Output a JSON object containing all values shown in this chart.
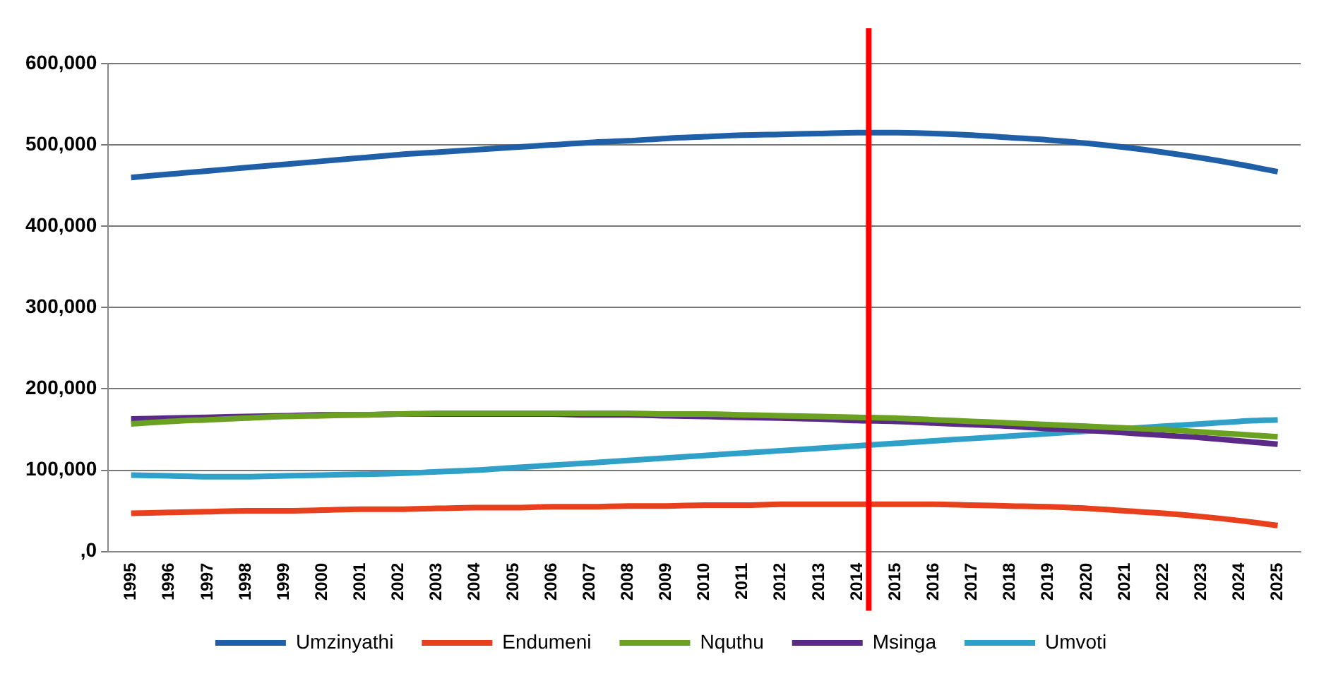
{
  "chart_data": {
    "type": "line",
    "x": [
      1995,
      1996,
      1997,
      1998,
      1999,
      2000,
      2001,
      2002,
      2003,
      2004,
      2005,
      2006,
      2007,
      2008,
      2009,
      2010,
      2011,
      2012,
      2013,
      2014,
      2015,
      2016,
      2017,
      2018,
      2019,
      2020,
      2021,
      2022,
      2023,
      2024,
      2025
    ],
    "series": [
      {
        "name": "Umzinyathi",
        "color": "#1f5fa8",
        "values": [
          460000,
          464000,
          468000,
          472000,
          476000,
          480000,
          484000,
          488000,
          491000,
          494000,
          497000,
          500000,
          503000,
          505000,
          508000,
          510000,
          512000,
          513000,
          514000,
          515000,
          515000,
          514000,
          512000,
          509000,
          506000,
          502000,
          497000,
          491000,
          484000,
          476000,
          467000
        ]
      },
      {
        "name": "Endumeni",
        "color": "#e8401c",
        "values": [
          47000,
          48000,
          49000,
          50000,
          50000,
          51000,
          52000,
          52000,
          53000,
          54000,
          54000,
          55000,
          55000,
          56000,
          56000,
          57000,
          57000,
          58000,
          58000,
          58000,
          58000,
          58000,
          57000,
          56000,
          55000,
          53000,
          50000,
          47000,
          43000,
          38000,
          32000
        ]
      },
      {
        "name": "Nquthu",
        "color": "#6aa121",
        "values": [
          157000,
          160000,
          162000,
          164000,
          166000,
          167000,
          168000,
          169000,
          170000,
          170000,
          170000,
          170000,
          170000,
          170000,
          169000,
          169000,
          168000,
          167000,
          166000,
          165000,
          164000,
          162000,
          160000,
          158000,
          156000,
          154000,
          152000,
          150000,
          147000,
          144000,
          141000
        ]
      },
      {
        "name": "Msinga",
        "color": "#5b2a86",
        "values": [
          163000,
          164000,
          165000,
          166000,
          167000,
          168000,
          168000,
          169000,
          169000,
          169000,
          169000,
          169000,
          168000,
          168000,
          167000,
          166000,
          165000,
          164000,
          163000,
          161000,
          160000,
          158000,
          156000,
          154000,
          151000,
          149000,
          146000,
          143000,
          140000,
          136000,
          132000
        ]
      },
      {
        "name": "Umvoti",
        "color": "#2fa0c8",
        "values": [
          94000,
          93000,
          92000,
          92000,
          93000,
          94000,
          95000,
          96000,
          98000,
          100000,
          103000,
          106000,
          109000,
          112000,
          115000,
          118000,
          121000,
          124000,
          127000,
          130000,
          133000,
          136000,
          139000,
          142000,
          145000,
          148000,
          151000,
          154000,
          157000,
          160000,
          162000
        ]
      }
    ],
    "xlim": [
      1994.4,
      2025.6
    ],
    "xticks": [
      1995,
      1996,
      1997,
      1998,
      1999,
      2000,
      2001,
      2002,
      2003,
      2004,
      2005,
      2006,
      2007,
      2008,
      2009,
      2010,
      2011,
      2012,
      2013,
      2014,
      2015,
      2016,
      2017,
      2018,
      2019,
      2020,
      2021,
      2022,
      2023,
      2024,
      2025
    ],
    "ylim": [
      0,
      600000
    ],
    "yticks": [
      {
        "value": 0,
        "label": ",0"
      },
      {
        "value": 100000,
        "label": "100,000"
      },
      {
        "value": 200000,
        "label": "200,000"
      },
      {
        "value": 300000,
        "label": "300,000"
      },
      {
        "value": 400000,
        "label": "400,000"
      },
      {
        "value": 500000,
        "label": "500,000"
      },
      {
        "value": 600000,
        "label": "600,000"
      }
    ],
    "ref_lines": [
      {
        "axis": "x",
        "value": 2014.3,
        "color": "#ff0000"
      }
    ],
    "grid": "y",
    "legend": "bottom",
    "marker": "none",
    "line_style": "solid"
  }
}
